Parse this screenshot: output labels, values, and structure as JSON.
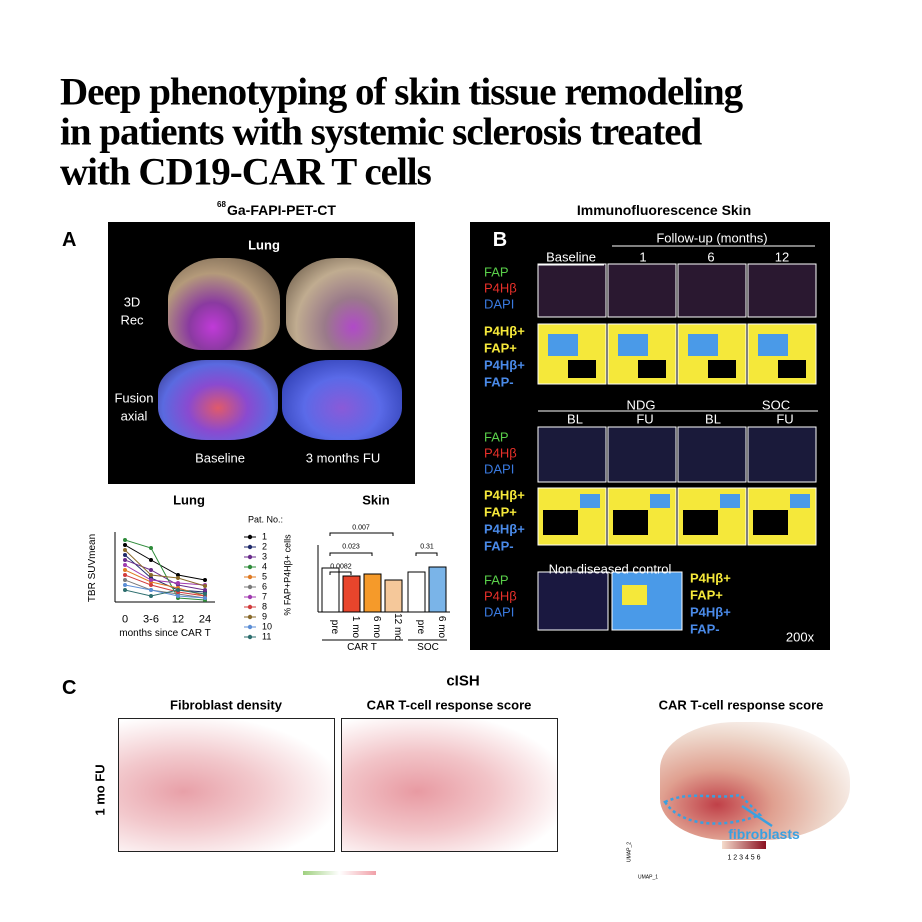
{
  "title_lines": [
    "Deep phenotyping of skin tissue remodeling",
    "in patients with systemic sclerosis treated",
    "with CD19-CAR T cells"
  ],
  "panel_a": {
    "label": "A",
    "header_sup": "68",
    "header": "Ga-FAPI-PET-CT",
    "image_title": "Lung",
    "row_labels": [
      [
        "3D",
        "Rec"
      ],
      [
        "Fusion",
        "axial"
      ]
    ],
    "columns": [
      "Baseline",
      "3 months FU"
    ],
    "lung_chart": {
      "title": "Lung",
      "y_label": "TBR SUVmean",
      "x_ticks": [
        "0",
        "3-6",
        "12",
        "24"
      ],
      "x_label": "months since CAR T"
    },
    "legend": {
      "title": "Pat. No.:",
      "items": [
        "1",
        "2",
        "3",
        "4",
        "5",
        "6",
        "7",
        "8",
        "9",
        "10",
        "11"
      ],
      "colors": [
        "#000000",
        "#1f2a6b",
        "#6a2d8c",
        "#2e8b3a",
        "#e07b24",
        "#7a7a7a",
        "#a03ab0",
        "#d23c3c",
        "#8a6a2a",
        "#5b8ed6",
        "#2d6e6e"
      ]
    },
    "skin_chart": {
      "title": "Skin",
      "y_label": "% FAP+P4Hβ+ cells",
      "p_values": [
        "0.007",
        "0.023",
        "0.0082",
        "0.31"
      ],
      "categories": [
        "pre",
        "1 mo",
        "6 mo",
        "12 mo",
        "pre",
        "6 mo"
      ],
      "groups": [
        "CAR T",
        "SOC"
      ]
    }
  },
  "panel_b": {
    "label": "B",
    "header": "Immunofluorescence Skin",
    "follow_up": "Follow-up (months)",
    "columns": [
      "Baseline",
      "1",
      "6",
      "12"
    ],
    "stain_labels": [
      "FAP",
      "P4Hβ",
      "DAPI"
    ],
    "class_labels": [
      "P4Hβ+",
      "FAP+",
      "P4Hβ+",
      "FAP-"
    ],
    "groups": [
      "NDG",
      "SOC"
    ],
    "group_columns": [
      "BL",
      "FU",
      "BL",
      "FU"
    ],
    "control": "Non-diseased control",
    "magnification": "200x"
  },
  "panel_c": {
    "label": "C",
    "header": "cISH",
    "columns": [
      "Fibroblast density",
      "CAR T-cell response score"
    ],
    "row_label": "1 mo FU",
    "umap_title": "CAR T-cell response score",
    "umap_annotation": "fibroblasts",
    "umap_x": "UMAP_1",
    "umap_y": "UMAP_2",
    "scale": "1 2 3 4 5 6"
  }
}
